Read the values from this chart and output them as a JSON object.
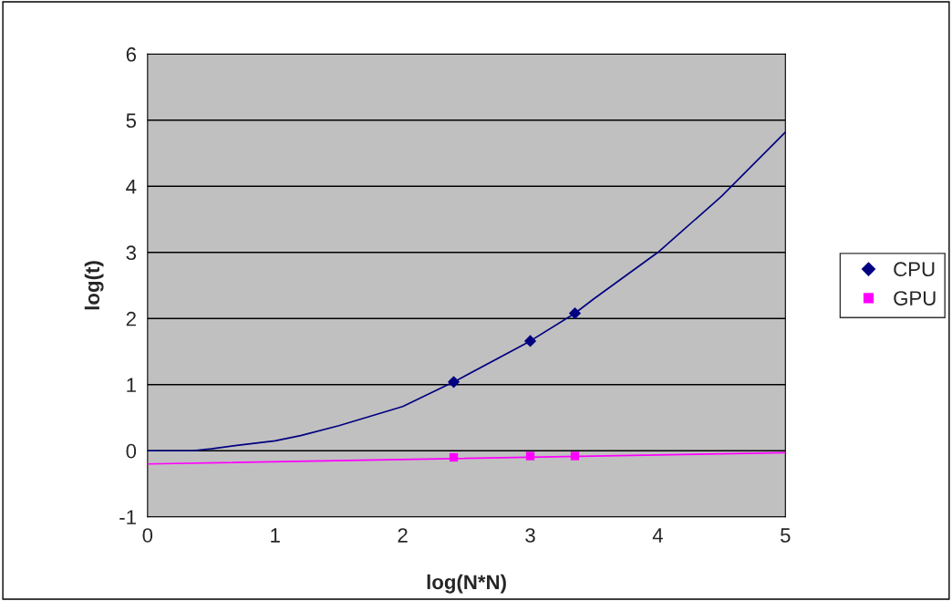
{
  "chart_data": {
    "type": "scatter",
    "xlabel": "log(N*N)",
    "ylabel": "log(t)",
    "xlim": [
      0,
      5
    ],
    "ylim": [
      -1,
      6
    ],
    "xticks": [
      0,
      1,
      2,
      3,
      4,
      5
    ],
    "yticks": [
      -1,
      0,
      1,
      2,
      3,
      4,
      5,
      6
    ],
    "grid": "y",
    "legend": "right",
    "series": [
      {
        "name": "CPU",
        "color": "#000080",
        "marker": "diamond",
        "x": [
          2.4,
          3,
          3.35
        ],
        "values": [
          1.04,
          1.66,
          2.08
        ]
      },
      {
        "name": "GPU",
        "color": "#ff00ff",
        "marker": "square",
        "x": [
          2.4,
          3,
          3.35
        ],
        "values": [
          -0.1,
          -0.08,
          -0.08
        ]
      },
      {
        "color": "#000080",
        "type": "line",
        "marker": "none",
        "x": [
          0,
          0.35,
          0.5,
          0.7,
          1,
          1.2,
          1.5,
          2,
          2.4,
          3,
          3.35,
          3.5,
          4,
          4.5,
          5
        ],
        "values": [
          0,
          0,
          0.03,
          0.08,
          0.15,
          0.23,
          0.38,
          0.67,
          1.04,
          1.66,
          2.08,
          2.3,
          3.0,
          3.85,
          4.82
        ]
      },
      {
        "color": "#ff00ff",
        "type": "line",
        "marker": "none",
        "x": [
          0,
          5
        ],
        "values": [
          -0.2,
          -0.03
        ]
      }
    ]
  }
}
